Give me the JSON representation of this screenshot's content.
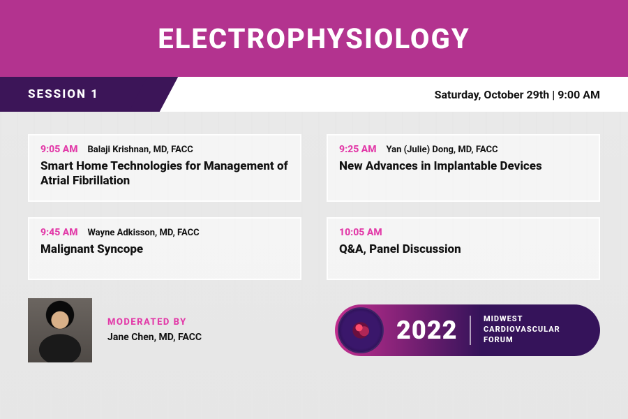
{
  "colors": {
    "magenta": "#b3338f",
    "darkPurple": "#3c1558",
    "accentPink": "#e23aa8",
    "badgeGradStart": "#c22e8f",
    "badgeGradEnd": "#35135a",
    "bannerText": "#ffffff",
    "bodyText": "#111111"
  },
  "typography": {
    "bannerTitleSize": 40,
    "sessionLabelSize": 17,
    "dateSize": 16
  },
  "banner": {
    "title": "ELECTROPHYSIOLOGY"
  },
  "session": {
    "label": "SESSION 1",
    "dateLine": "Saturday, October 29th  |  9:00 AM"
  },
  "talks": [
    {
      "time": "9:05 AM",
      "speaker": "Balaji Krishnan, MD, FACC",
      "title": "Smart Home Technologies for Management of Atrial Fibrillation"
    },
    {
      "time": "9:25 AM",
      "speaker": "Yan (Julie) Dong, MD, FACC",
      "title": "New Advances in Implantable Devices"
    },
    {
      "time": "9:45 AM",
      "speaker": "Wayne Adkisson, MD, FACC",
      "title": "Malignant Syncope"
    },
    {
      "time": "10:05 AM",
      "speaker": "",
      "title": "Q&A, Panel Discussion"
    }
  ],
  "moderator": {
    "label": "MODERATED BY",
    "name": "Jane Chen, MD, FACC"
  },
  "forumBadge": {
    "year": "2022",
    "line1": "MIDWEST",
    "line2": "CARDIOVASCULAR",
    "line3": "FORUM"
  }
}
